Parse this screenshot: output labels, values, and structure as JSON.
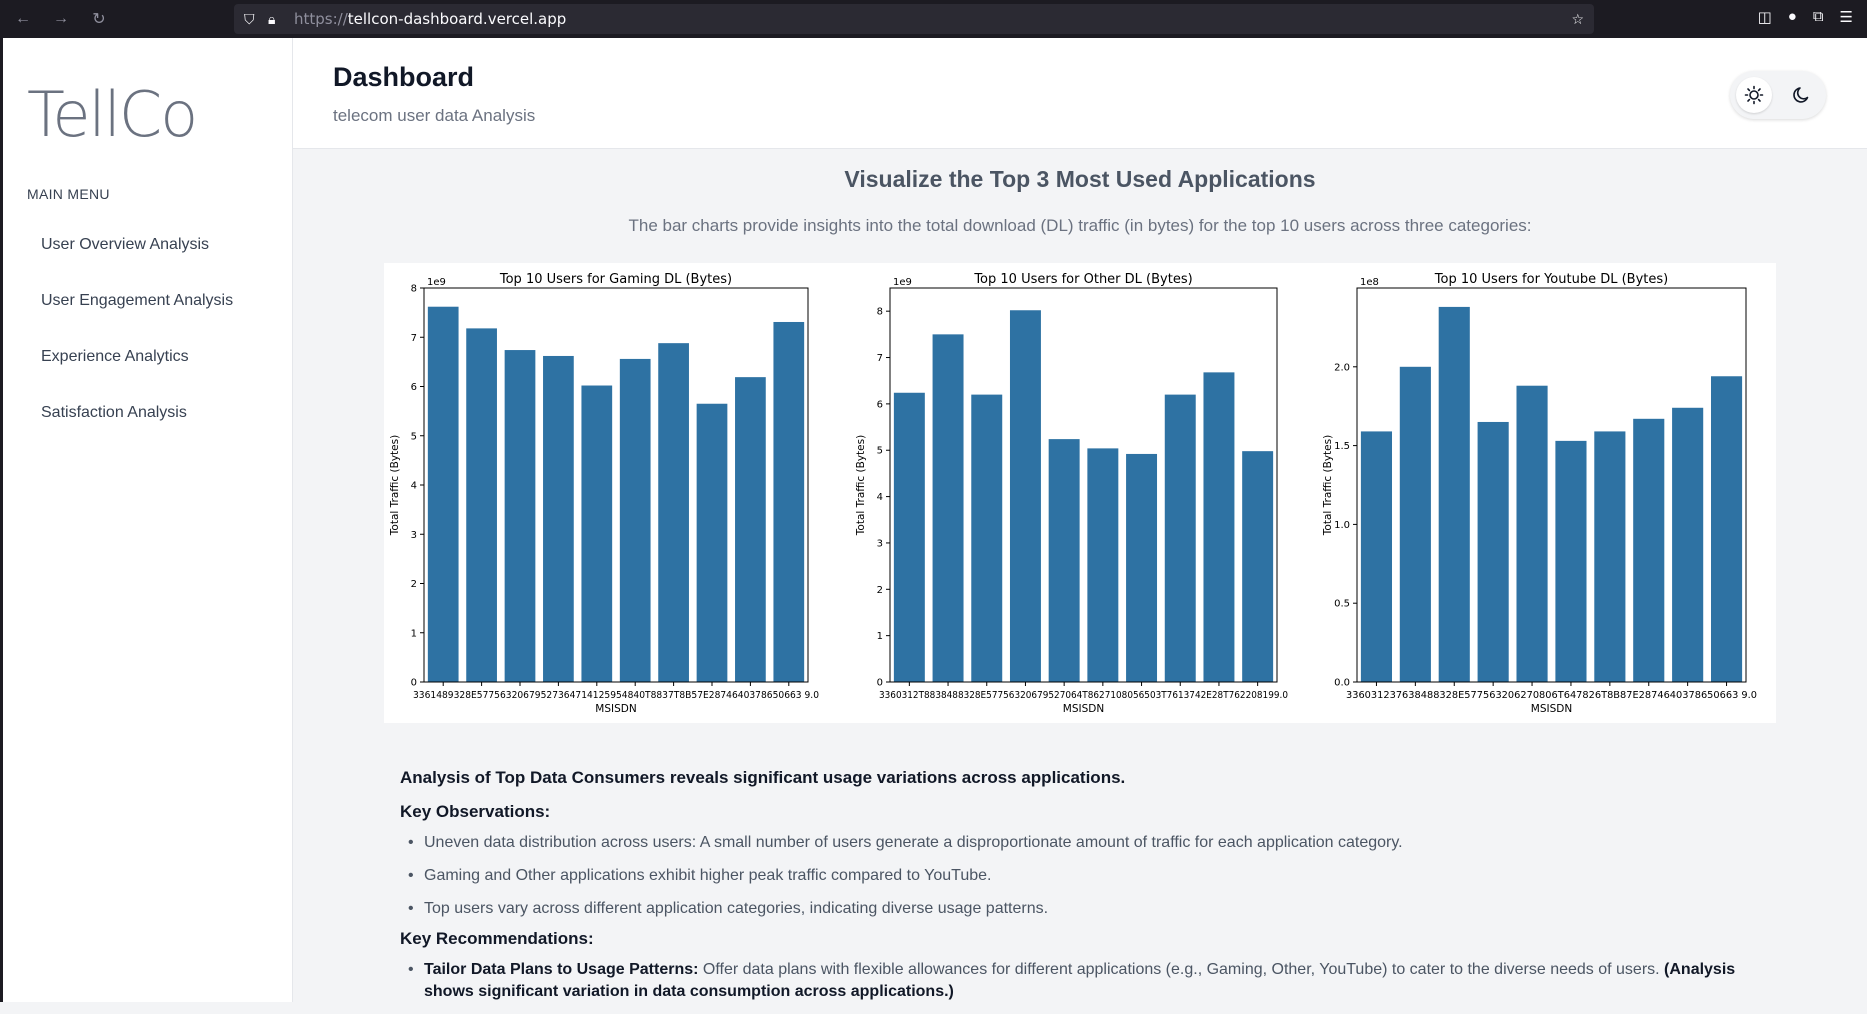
{
  "browser": {
    "url_proto": "https://",
    "url_host": "tellcon-dashboard.vercel.app"
  },
  "sidebar": {
    "logo": "TellCo",
    "menu_title": "MAIN MENU",
    "items": [
      {
        "label": "User Overview Analysis"
      },
      {
        "label": "User Engagement Analysis"
      },
      {
        "label": "Experience Analytics"
      },
      {
        "label": "Satisfaction Analysis"
      }
    ]
  },
  "header": {
    "title": "Dashboard",
    "subtitle": "telecom user data Analysis"
  },
  "section": {
    "title": "Visualize the Top 3 Most Used Applications",
    "description": "The bar charts provide insights into the total download (DL) traffic (in bytes) for the top 10 users across three categories:"
  },
  "chart_data": [
    {
      "type": "bar",
      "title": "Top 10 Users for Gaming DL (Bytes)",
      "xlabel": "MSISDN",
      "ylabel": "Total Traffic (Bytes)",
      "scale_label": "1e9",
      "ylim": [
        0,
        8
      ],
      "yticks": [
        0,
        1,
        2,
        3,
        4,
        5,
        6,
        7,
        8
      ],
      "tick_text": "33614892860.0 33625779332.0 33626320676.0 33658490784.0 33659725664.0 33660509489.0 33661000001.0 33662840755.0 33664693736.0 33667163239.0",
      "x_tick_overlap": "3361489328E57756320679527364714125954840T8837T8B57E2874640378650663 9.0",
      "color": "#2e72a3",
      "values": [
        7.62,
        7.18,
        6.74,
        6.62,
        6.02,
        6.56,
        6.88,
        5.65,
        6.19,
        7.31
      ]
    },
    {
      "type": "bar",
      "title": "Top 10 Users for Other DL (Bytes)",
      "xlabel": "MSISDN",
      "ylabel": "Total Traffic (Bytes)",
      "scale_label": "1e9",
      "ylim": [
        0,
        8.5
      ],
      "yticks": [
        0,
        1,
        2,
        3,
        4,
        5,
        6,
        7,
        8
      ],
      "color": "#2e72a3",
      "values": [
        6.24,
        7.5,
        6.2,
        8.02,
        5.24,
        5.04,
        4.92,
        6.2,
        6.68,
        4.98
      ]
    },
    {
      "type": "bar",
      "title": "Top 10 Users for Youtube DL (Bytes)",
      "xlabel": "MSISDN",
      "ylabel": "Total Traffic (Bytes)",
      "scale_label": "1e8",
      "ylim": [
        0,
        2.5
      ],
      "yticks": [
        0.0,
        0.5,
        1.0,
        1.5,
        2.0
      ],
      "color": "#2e72a3",
      "values": [
        1.59,
        2.0,
        2.38,
        1.65,
        1.88,
        1.53,
        1.59,
        1.67,
        1.74,
        1.94
      ]
    }
  ],
  "chart_tick_texts": [
    "3361489328E57756320679527364714125954840T8837T8B57E2874640378650663 9.0",
    "3360312T8838488328E57756320679527064T8627108056503T7613742E28T762208199.0",
    "336031237638488328E577563206270806T647826T8B87E2874640378650663 9.0"
  ],
  "analysis": {
    "heading": "Analysis of Top Data Consumers reveals significant usage variations across applications.",
    "observations_title": "Key Observations:",
    "observations": [
      "Uneven data distribution across users: A small number of users generate a disproportionate amount of traffic for each application category.",
      "Gaming and Other applications exhibit higher peak traffic compared to YouTube.",
      "Top users vary across different application categories, indicating diverse usage patterns."
    ],
    "recommendations_title": "Key Recommendations:",
    "recommendation_1": {
      "bold": "Tailor Data Plans to Usage Patterns:",
      "text": " Offer data plans with flexible allowances for different applications (e.g., Gaming, Other, YouTube) to cater to the diverse needs of users. ",
      "bold_tail": "(Analysis shows significant variation in data consumption across applications.)"
    }
  }
}
